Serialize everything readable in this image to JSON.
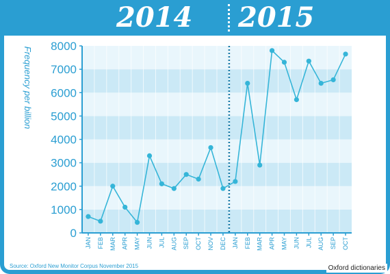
{
  "header": {
    "year_left": "2014",
    "year_right": "2015"
  },
  "chart_data": {
    "type": "line",
    "ylabel": "Frequency per billion",
    "ylim": [
      0,
      8000
    ],
    "yticks": [
      0,
      1000,
      2000,
      3000,
      4000,
      5000,
      6000,
      7000,
      8000
    ],
    "categories": [
      "JAN",
      "FEB",
      "MAR",
      "APR",
      "MAY",
      "JUN",
      "JUL",
      "AUG",
      "SEP",
      "OCT",
      "NOV",
      "DEC",
      "JAN",
      "FEB",
      "MAR",
      "APR",
      "MAY",
      "JUN",
      "JUL",
      "AUG",
      "SEP",
      "OCT"
    ],
    "series": [
      {
        "values": [
          700,
          500,
          2000,
          1100,
          450,
          3300,
          2100,
          1900,
          2500,
          2300,
          3650,
          1900,
          2200,
          6400,
          2900,
          7800,
          7300,
          5700,
          7350,
          6400,
          6550,
          7650
        ]
      }
    ],
    "colors": {
      "line": "#35b5d8",
      "band": "#cbe9f6",
      "axis": "#2a9ed2",
      "divider": "#1a7aa6"
    }
  },
  "footer": {
    "source": "Source: Oxford New Monitor Corpus November 2015",
    "credit": "Oxford dictionaries"
  }
}
